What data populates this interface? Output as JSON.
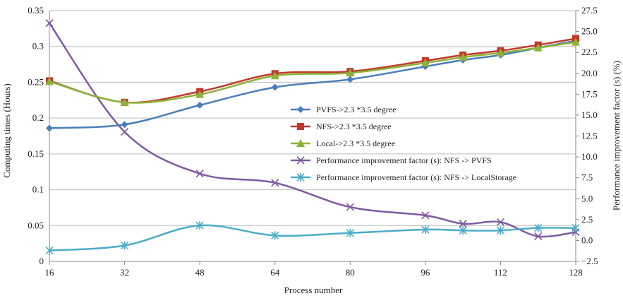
{
  "chart_data": {
    "type": "line",
    "xlabel": "Process number",
    "ylabel_left": "Computing times (Hours)",
    "ylabel_right": "Performance improvement factor (s) (%)",
    "x_ticks": [
      "16",
      "32",
      "48",
      "64",
      "80",
      "96",
      "112",
      "128"
    ],
    "y_left_ticks": [
      "0",
      "0.05",
      "0.1",
      "0.15",
      "0.2",
      "0.25",
      "0.3",
      "0.35"
    ],
    "y_right_ticks": [
      "−2.5",
      "0.0",
      "2.5",
      "5.0",
      "7.5",
      "10.0",
      "12.5",
      "15.0",
      "17.5",
      "20.0",
      "22.5",
      "25.0",
      "27.5"
    ],
    "ylim_left": [
      0,
      0.35
    ],
    "ylim_right": [
      -2.5,
      27.5
    ],
    "xlim": [
      16,
      128
    ],
    "grid": "horizontal",
    "legend_position": "center-right",
    "series": [
      {
        "name": "PVFS->2.3 *3.5 degree",
        "axis": "left",
        "color": "#4a7ebb",
        "marker": "diamond",
        "x": [
          16,
          32,
          48,
          64,
          80,
          96,
          104,
          112,
          120,
          128
        ],
        "values": [
          0.186,
          0.191,
          0.218,
          0.243,
          0.254,
          0.272,
          0.281,
          0.288,
          0.298,
          0.308
        ]
      },
      {
        "name": "NFS->2.3 *3.5 degree",
        "axis": "left",
        "color": "#c0392b",
        "marker": "square",
        "x": [
          16,
          32,
          48,
          64,
          80,
          96,
          104,
          112,
          120,
          128
        ],
        "values": [
          0.252,
          0.222,
          0.237,
          0.262,
          0.265,
          0.28,
          0.288,
          0.294,
          0.302,
          0.311
        ]
      },
      {
        "name": "Local->2.3 *3.5 degree",
        "axis": "left",
        "color": "#8db33a",
        "marker": "triangle",
        "x": [
          16,
          32,
          48,
          64,
          80,
          96,
          104,
          112,
          120,
          128
        ],
        "values": [
          0.251,
          0.222,
          0.233,
          0.259,
          0.263,
          0.277,
          0.285,
          0.291,
          0.298,
          0.306
        ]
      },
      {
        "name": "Performance improvement factor (s): NFS -> PVFS",
        "axis": "right",
        "color": "#7e5aa2",
        "marker": "x",
        "x": [
          16,
          32,
          48,
          64,
          80,
          96,
          104,
          112,
          120,
          128
        ],
        "values": [
          26.0,
          13.0,
          8.0,
          6.9,
          4.0,
          3.0,
          2.0,
          2.2,
          0.5,
          1.0
        ]
      },
      {
        "name": "Performance improvement factor (s): NFS -> LocalStorage",
        "axis": "right",
        "color": "#4bacc6",
        "marker": "star",
        "x": [
          16,
          32,
          48,
          64,
          80,
          96,
          104,
          112,
          120,
          128
        ],
        "values": [
          -1.2,
          -0.6,
          1.8,
          0.6,
          0.9,
          1.3,
          1.2,
          1.2,
          1.5,
          1.5
        ]
      }
    ]
  }
}
